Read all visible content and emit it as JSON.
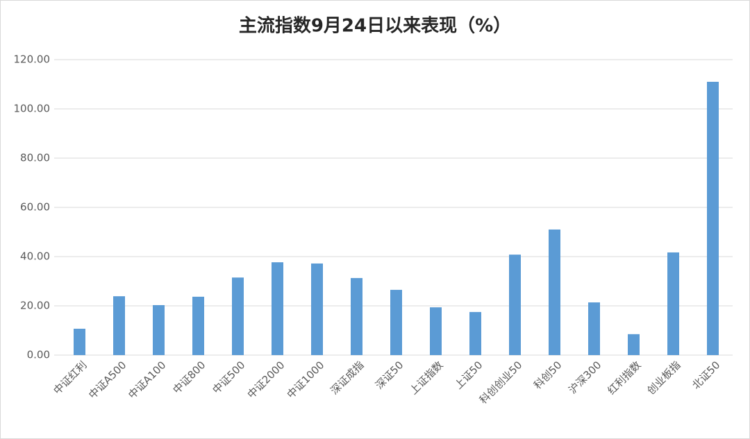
{
  "chart_data": {
    "type": "bar",
    "title": "主流指数9月24日以来表现（%）",
    "categories": [
      "中证红利",
      "中证A500",
      "中证A100",
      "中证800",
      "中证500",
      "中证2000",
      "中证1000",
      "深证成指",
      "深证50",
      "上证指数",
      "上证50",
      "科创创业50",
      "科创50",
      "沪深300",
      "红利指数",
      "创业板指",
      "北证50"
    ],
    "values": [
      10.7,
      23.9,
      20.3,
      23.7,
      31.5,
      37.7,
      37.2,
      31.3,
      26.5,
      19.4,
      17.5,
      40.8,
      51.0,
      21.4,
      8.5,
      41.7,
      111.0
    ],
    "color": "#5b9bd5",
    "ylim": [
      0,
      120
    ],
    "yticks": [
      {
        "value": 0,
        "label": "0.00"
      },
      {
        "value": 20,
        "label": "20.00"
      },
      {
        "value": 40,
        "label": "40.00"
      },
      {
        "value": 60,
        "label": "60.00"
      },
      {
        "value": 80,
        "label": "80.00"
      },
      {
        "value": 100,
        "label": "100.00"
      },
      {
        "value": 120,
        "label": "120.00"
      }
    ],
    "grid": true
  }
}
